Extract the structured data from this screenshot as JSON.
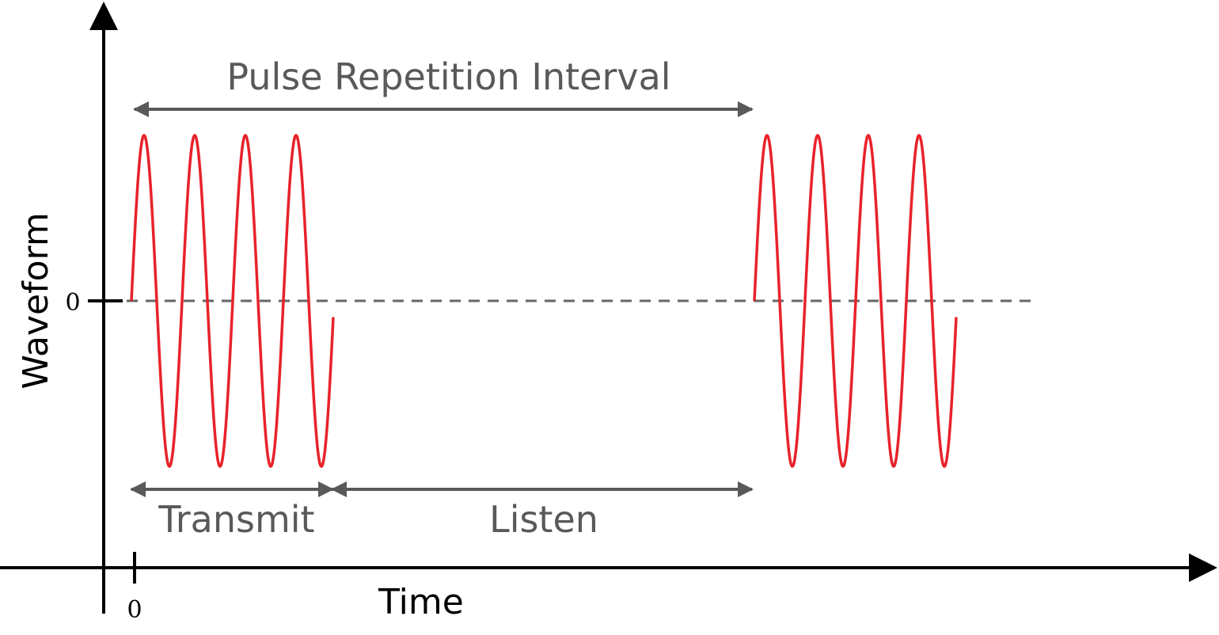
{
  "labels": {
    "pri": "Pulse Repetition Interval",
    "transmit": "Transmit",
    "listen": "Listen",
    "x_axis": "Time",
    "y_axis": "Waveform",
    "y_zero": "0",
    "x_zero": "0"
  },
  "colors": {
    "wave": "#e8222a",
    "annotation": "#595959",
    "axis": "#000000",
    "baseline": "#666666"
  }
}
